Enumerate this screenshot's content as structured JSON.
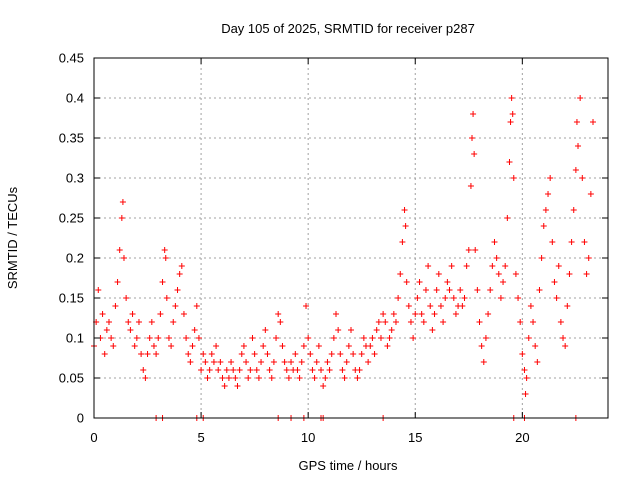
{
  "chart_data": {
    "type": "scatter",
    "title": "Day 105 of 2025, SRMTID for receiver p287",
    "xlabel": "GPS time / hours",
    "ylabel": "SRMTID / TECUs",
    "xlim": [
      0,
      24
    ],
    "ylim": [
      0,
      0.45
    ],
    "xticks": [
      0,
      5,
      10,
      15,
      20
    ],
    "xtick_labels": [
      "0",
      "5",
      "10",
      "15",
      "20"
    ],
    "yticks": [
      0,
      0.05,
      0.1,
      0.15,
      0.2,
      0.25,
      0.3,
      0.35,
      0.4,
      0.45
    ],
    "ytick_labels": [
      "0",
      "0.05",
      "0.1",
      "0.15",
      "0.2",
      "0.25",
      "0.3",
      "0.35",
      "0.4",
      "0.45"
    ],
    "grid": true,
    "marker": "+",
    "color": "#ff0000",
    "series": [
      {
        "name": "SRMTID",
        "points": [
          [
            0.0,
            0.09
          ],
          [
            0.1,
            0.12
          ],
          [
            0.2,
            0.16
          ],
          [
            0.3,
            0.1
          ],
          [
            0.4,
            0.13
          ],
          [
            0.5,
            0.08
          ],
          [
            0.6,
            0.11
          ],
          [
            0.7,
            0.12
          ],
          [
            0.8,
            0.1
          ],
          [
            0.9,
            0.09
          ],
          [
            1.0,
            0.14
          ],
          [
            1.1,
            0.17
          ],
          [
            1.2,
            0.21
          ],
          [
            1.3,
            0.25
          ],
          [
            1.35,
            0.27
          ],
          [
            1.4,
            0.2
          ],
          [
            1.5,
            0.15
          ],
          [
            1.6,
            0.12
          ],
          [
            1.7,
            0.11
          ],
          [
            1.8,
            0.13
          ],
          [
            1.9,
            0.09
          ],
          [
            2.0,
            0.1
          ],
          [
            2.1,
            0.12
          ],
          [
            2.2,
            0.08
          ],
          [
            2.3,
            0.06
          ],
          [
            2.4,
            0.05
          ],
          [
            2.5,
            0.08
          ],
          [
            2.6,
            0.1
          ],
          [
            2.7,
            0.12
          ],
          [
            2.8,
            0.09
          ],
          [
            2.9,
            0.08
          ],
          [
            3.0,
            0.1
          ],
          [
            3.1,
            0.13
          ],
          [
            3.2,
            0.17
          ],
          [
            3.3,
            0.21
          ],
          [
            3.35,
            0.2
          ],
          [
            3.4,
            0.15
          ],
          [
            3.5,
            0.1
          ],
          [
            3.6,
            0.09
          ],
          [
            3.7,
            0.12
          ],
          [
            3.8,
            0.14
          ],
          [
            3.9,
            0.16
          ],
          [
            4.0,
            0.18
          ],
          [
            4.1,
            0.19
          ],
          [
            4.2,
            0.13
          ],
          [
            4.3,
            0.1
          ],
          [
            4.4,
            0.08
          ],
          [
            4.5,
            0.07
          ],
          [
            4.6,
            0.09
          ],
          [
            4.7,
            0.11
          ],
          [
            4.8,
            0.14
          ],
          [
            4.9,
            0.1
          ],
          [
            5.0,
            0.06
          ],
          [
            5.1,
            0.08
          ],
          [
            5.2,
            0.07
          ],
          [
            5.3,
            0.05
          ],
          [
            5.4,
            0.06
          ],
          [
            5.5,
            0.08
          ],
          [
            5.6,
            0.07
          ],
          [
            5.7,
            0.09
          ],
          [
            5.8,
            0.06
          ],
          [
            5.9,
            0.07
          ],
          [
            6.0,
            0.05
          ],
          [
            6.1,
            0.04
          ],
          [
            6.2,
            0.06
          ],
          [
            6.3,
            0.05
          ],
          [
            6.4,
            0.07
          ],
          [
            6.5,
            0.06
          ],
          [
            6.6,
            0.05
          ],
          [
            6.7,
            0.04
          ],
          [
            6.8,
            0.06
          ],
          [
            6.9,
            0.08
          ],
          [
            7.0,
            0.09
          ],
          [
            7.1,
            0.07
          ],
          [
            7.2,
            0.05
          ],
          [
            7.3,
            0.06
          ],
          [
            7.4,
            0.1
          ],
          [
            7.5,
            0.08
          ],
          [
            7.6,
            0.06
          ],
          [
            7.7,
            0.05
          ],
          [
            7.8,
            0.07
          ],
          [
            7.9,
            0.09
          ],
          [
            8.0,
            0.11
          ],
          [
            8.1,
            0.08
          ],
          [
            8.2,
            0.06
          ],
          [
            8.3,
            0.05
          ],
          [
            8.4,
            0.07
          ],
          [
            8.5,
            0.1
          ],
          [
            8.6,
            0.13
          ],
          [
            8.7,
            0.12
          ],
          [
            8.8,
            0.09
          ],
          [
            8.9,
            0.07
          ],
          [
            9.0,
            0.06
          ],
          [
            9.1,
            0.05
          ],
          [
            9.2,
            0.07
          ],
          [
            9.3,
            0.06
          ],
          [
            9.4,
            0.08
          ],
          [
            9.5,
            0.06
          ],
          [
            9.6,
            0.05
          ],
          [
            9.7,
            0.07
          ],
          [
            9.8,
            0.09
          ],
          [
            9.9,
            0.14
          ],
          [
            10.0,
            0.1
          ],
          [
            10.1,
            0.08
          ],
          [
            10.2,
            0.06
          ],
          [
            10.3,
            0.05
          ],
          [
            10.4,
            0.07
          ],
          [
            10.5,
            0.09
          ],
          [
            10.6,
            0.06
          ],
          [
            10.7,
            0.04
          ],
          [
            10.8,
            0.05
          ],
          [
            10.9,
            0.07
          ],
          [
            11.0,
            0.06
          ],
          [
            11.1,
            0.08
          ],
          [
            11.2,
            0.1
          ],
          [
            11.3,
            0.13
          ],
          [
            11.4,
            0.11
          ],
          [
            11.5,
            0.08
          ],
          [
            11.6,
            0.06
          ],
          [
            11.7,
            0.05
          ],
          [
            11.8,
            0.07
          ],
          [
            11.9,
            0.09
          ],
          [
            12.0,
            0.11
          ],
          [
            12.1,
            0.08
          ],
          [
            12.2,
            0.06
          ],
          [
            12.3,
            0.05
          ],
          [
            12.4,
            0.06
          ],
          [
            12.5,
            0.08
          ],
          [
            12.6,
            0.1
          ],
          [
            12.7,
            0.09
          ],
          [
            12.8,
            0.07
          ],
          [
            12.9,
            0.09
          ],
          [
            13.0,
            0.1
          ],
          [
            13.1,
            0.08
          ],
          [
            13.2,
            0.11
          ],
          [
            13.3,
            0.12
          ],
          [
            13.4,
            0.1
          ],
          [
            13.5,
            0.13
          ],
          [
            13.6,
            0.12
          ],
          [
            13.7,
            0.09
          ],
          [
            13.8,
            0.1
          ],
          [
            13.9,
            0.11
          ],
          [
            14.0,
            0.13
          ],
          [
            14.1,
            0.12
          ],
          [
            14.2,
            0.15
          ],
          [
            14.3,
            0.18
          ],
          [
            14.4,
            0.22
          ],
          [
            14.5,
            0.26
          ],
          [
            14.55,
            0.24
          ],
          [
            14.6,
            0.17
          ],
          [
            14.7,
            0.14
          ],
          [
            14.8,
            0.12
          ],
          [
            14.9,
            0.1
          ],
          [
            15.0,
            0.13
          ],
          [
            15.1,
            0.15
          ],
          [
            15.2,
            0.17
          ],
          [
            15.3,
            0.13
          ],
          [
            15.4,
            0.12
          ],
          [
            15.5,
            0.16
          ],
          [
            15.6,
            0.19
          ],
          [
            15.7,
            0.14
          ],
          [
            15.8,
            0.11
          ],
          [
            15.9,
            0.13
          ],
          [
            16.0,
            0.16
          ],
          [
            16.1,
            0.18
          ],
          [
            16.2,
            0.14
          ],
          [
            16.3,
            0.12
          ],
          [
            16.4,
            0.15
          ],
          [
            16.5,
            0.17
          ],
          [
            16.6,
            0.16
          ],
          [
            16.7,
            0.19
          ],
          [
            16.8,
            0.15
          ],
          [
            16.9,
            0.13
          ],
          [
            17.0,
            0.14
          ],
          [
            17.1,
            0.16
          ],
          [
            17.2,
            0.14
          ],
          [
            17.3,
            0.15
          ],
          [
            17.4,
            0.19
          ],
          [
            17.5,
            0.21
          ],
          [
            17.6,
            0.29
          ],
          [
            17.65,
            0.35
          ],
          [
            17.7,
            0.38
          ],
          [
            17.75,
            0.33
          ],
          [
            17.8,
            0.21
          ],
          [
            17.9,
            0.16
          ],
          [
            18.0,
            0.12
          ],
          [
            18.1,
            0.09
          ],
          [
            18.2,
            0.07
          ],
          [
            18.3,
            0.1
          ],
          [
            18.4,
            0.13
          ],
          [
            18.5,
            0.16
          ],
          [
            18.6,
            0.19
          ],
          [
            18.7,
            0.22
          ],
          [
            18.8,
            0.2
          ],
          [
            18.9,
            0.18
          ],
          [
            19.0,
            0.15
          ],
          [
            19.1,
            0.17
          ],
          [
            19.2,
            0.19
          ],
          [
            19.3,
            0.25
          ],
          [
            19.4,
            0.32
          ],
          [
            19.45,
            0.37
          ],
          [
            19.5,
            0.4
          ],
          [
            19.55,
            0.38
          ],
          [
            19.6,
            0.3
          ],
          [
            19.7,
            0.18
          ],
          [
            19.8,
            0.15
          ],
          [
            19.9,
            0.12
          ],
          [
            20.0,
            0.08
          ],
          [
            20.1,
            0.06
          ],
          [
            20.15,
            0.03
          ],
          [
            20.2,
            0.05
          ],
          [
            20.3,
            0.1
          ],
          [
            20.4,
            0.14
          ],
          [
            20.5,
            0.12
          ],
          [
            20.6,
            0.09
          ],
          [
            20.7,
            0.07
          ],
          [
            20.8,
            0.16
          ],
          [
            20.9,
            0.2
          ],
          [
            21.0,
            0.24
          ],
          [
            21.1,
            0.26
          ],
          [
            21.2,
            0.28
          ],
          [
            21.3,
            0.3
          ],
          [
            21.4,
            0.22
          ],
          [
            21.5,
            0.17
          ],
          [
            21.6,
            0.15
          ],
          [
            21.7,
            0.19
          ],
          [
            21.8,
            0.12
          ],
          [
            21.9,
            0.1
          ],
          [
            22.0,
            0.09
          ],
          [
            22.1,
            0.14
          ],
          [
            22.2,
            0.18
          ],
          [
            22.3,
            0.22
          ],
          [
            22.4,
            0.26
          ],
          [
            22.5,
            0.31
          ],
          [
            22.55,
            0.37
          ],
          [
            22.6,
            0.34
          ],
          [
            22.7,
            0.4
          ],
          [
            22.8,
            0.3
          ],
          [
            22.9,
            0.22
          ],
          [
            23.0,
            0.18
          ],
          [
            23.1,
            0.2
          ],
          [
            23.2,
            0.28
          ],
          [
            23.3,
            0.37
          ]
        ]
      }
    ],
    "zero_points_x": [
      2.9,
      3.2,
      4.8,
      5.1,
      8.6,
      9.2,
      9.8,
      10.6,
      10.7,
      13.5,
      19.6,
      20.1,
      22.5
    ]
  }
}
